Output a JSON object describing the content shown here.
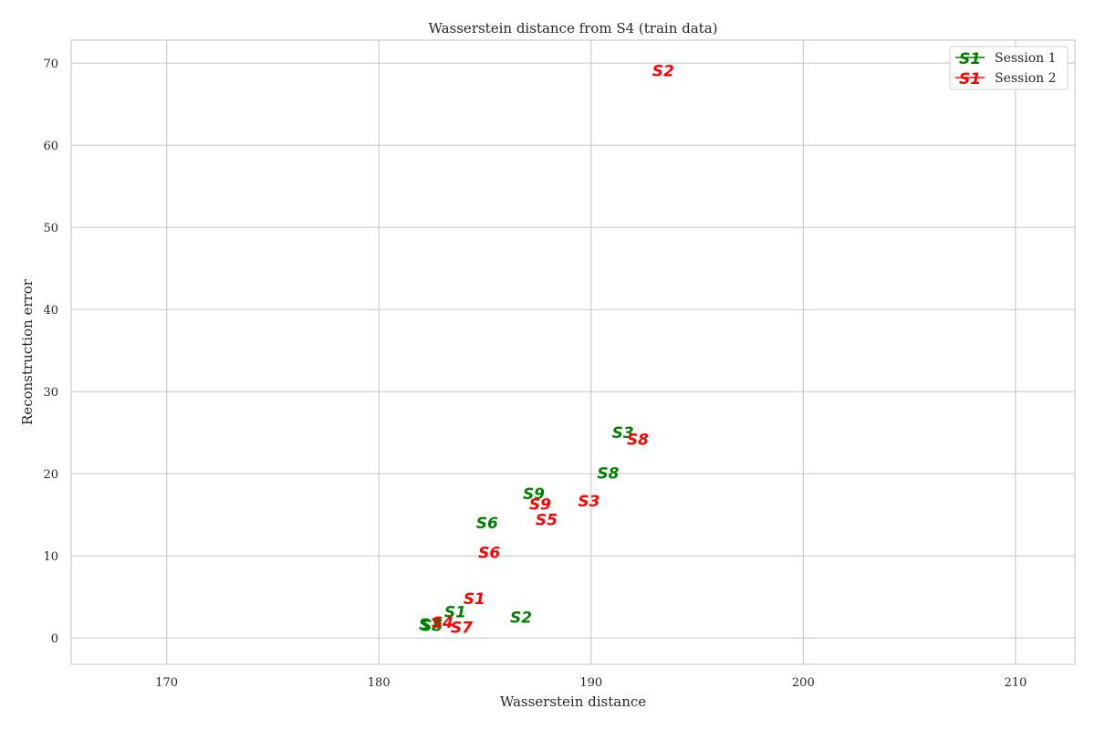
{
  "chart_data": {
    "type": "scatter",
    "title": "Wasserstein distance from S4 (train data)",
    "xlabel": "Wasserstein distance",
    "ylabel": "Reconstruction error",
    "xlim": [
      165.5,
      212.8
    ],
    "ylim": [
      -3.2,
      72.8
    ],
    "xticks": [
      170,
      180,
      190,
      200,
      210
    ],
    "yticks": [
      0,
      10,
      20,
      30,
      40,
      50,
      60,
      70
    ],
    "grid": true,
    "legend_position": "top-right",
    "marker_style": "text labels",
    "series": [
      {
        "name": "Session 1",
        "color": "#008000",
        "legend_marker": "S1",
        "points": [
          {
            "label": "S1",
            "x": 183.6,
            "y": 3.2
          },
          {
            "label": "S2",
            "x": 186.7,
            "y": 2.5
          },
          {
            "label": "S3",
            "x": 191.5,
            "y": 25.0
          },
          {
            "label": "S5",
            "x": 182.5,
            "y": 1.5
          },
          {
            "label": "S6",
            "x": 185.1,
            "y": 14.0
          },
          {
            "label": "S7",
            "x": 182.4,
            "y": 1.7
          },
          {
            "label": "S8",
            "x": 190.8,
            "y": 20.1
          },
          {
            "label": "S9",
            "x": 187.3,
            "y": 17.6
          }
        ]
      },
      {
        "name": "Session 2",
        "color": "#ff0000",
        "legend_marker": "S1",
        "points": [
          {
            "label": "S1",
            "x": 184.5,
            "y": 4.8
          },
          {
            "label": "S2",
            "x": 193.4,
            "y": 69.1
          },
          {
            "label": "S3",
            "x": 189.9,
            "y": 16.7
          },
          {
            "label": "S4",
            "x": 183.0,
            "y": 1.9
          },
          {
            "label": "S5",
            "x": 187.9,
            "y": 14.4
          },
          {
            "label": "S6",
            "x": 185.2,
            "y": 10.4
          },
          {
            "label": "S7",
            "x": 183.9,
            "y": 1.3
          },
          {
            "label": "S8",
            "x": 192.2,
            "y": 24.2
          },
          {
            "label": "S9",
            "x": 187.6,
            "y": 16.3
          }
        ]
      }
    ]
  }
}
